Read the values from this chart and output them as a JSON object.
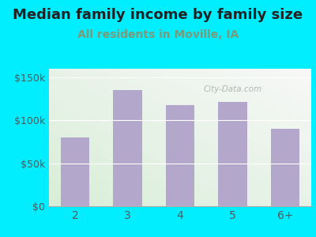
{
  "title": "Median family income by family size",
  "subtitle": "All residents in Moville, IA",
  "categories": [
    "2",
    "3",
    "4",
    "5",
    "6+"
  ],
  "values": [
    80000,
    135000,
    118000,
    121000,
    90000
  ],
  "bar_color": "#b3a8cc",
  "title_fontsize": 13,
  "subtitle_fontsize": 10,
  "subtitle_color": "#7a9a7a",
  "title_color": "#222222",
  "bg_outer": "#00eeff",
  "bg_inner_grad_bl": "#d8eed8",
  "bg_inner_grad_tr": "#f8f8f8",
  "ylim": [
    0,
    160000
  ],
  "yticks": [
    0,
    50000,
    100000,
    150000
  ],
  "ytick_labels": [
    "$0",
    "$50k",
    "$100k",
    "$150k"
  ],
  "tick_color": "#555555",
  "watermark": "City-Data.com",
  "watermark_color": "#aaaaaa"
}
